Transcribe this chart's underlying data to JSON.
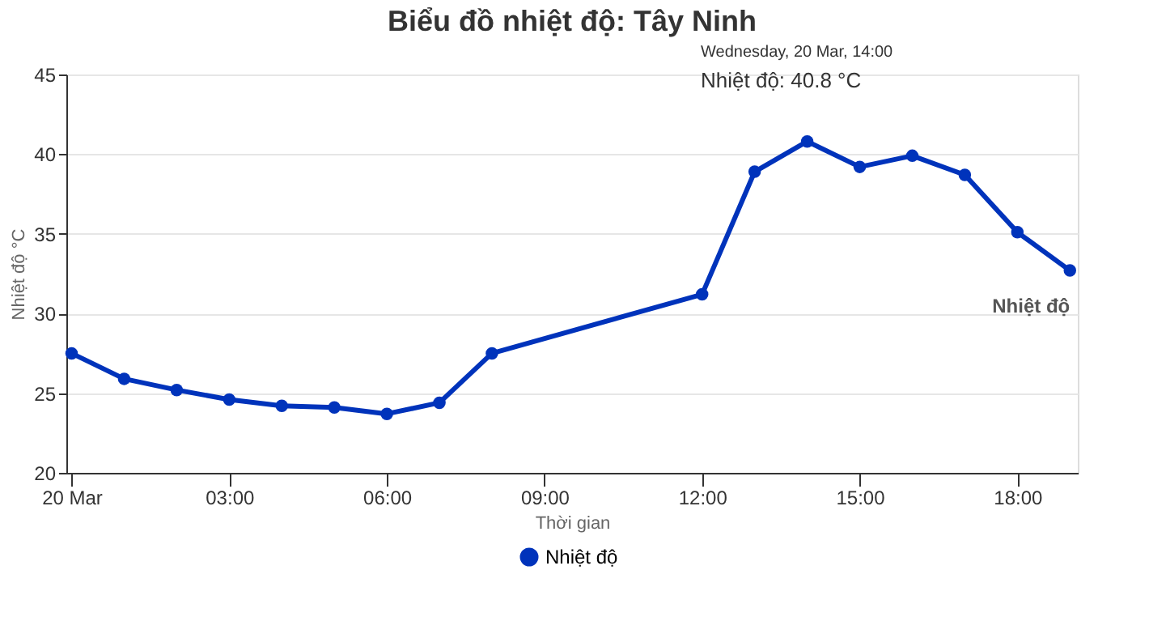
{
  "chart_data": {
    "type": "line",
    "title": "Biểu đồ nhiệt độ: Tây Ninh",
    "xlabel": "Thời gian",
    "ylabel": "Nhiệt độ °C",
    "x": [
      0,
      1,
      2,
      3,
      4,
      5,
      6,
      7,
      8,
      12,
      13,
      14,
      15,
      16,
      17,
      18,
      19
    ],
    "series": [
      {
        "name": "Nhiệt độ",
        "color": "#0033bb",
        "values": [
          27.5,
          25.9,
          25.2,
          24.6,
          24.2,
          24.1,
          23.7,
          24.4,
          27.5,
          31.2,
          38.9,
          40.8,
          39.2,
          39.9,
          38.7,
          35.1,
          32.7
        ]
      }
    ],
    "xlim": [
      -0.1,
      19.15
    ],
    "xticks": [
      {
        "value": 0,
        "label": "20 Mar"
      },
      {
        "value": 3,
        "label": "03:00"
      },
      {
        "value": 6,
        "label": "06:00"
      },
      {
        "value": 9,
        "label": "09:00"
      },
      {
        "value": 12,
        "label": "12:00"
      },
      {
        "value": 15,
        "label": "15:00"
      },
      {
        "value": 18,
        "label": "18:00"
      }
    ],
    "ylim": [
      20,
      45
    ],
    "yticks": [
      20,
      25,
      30,
      35,
      40,
      45
    ],
    "annotations": [
      "Wednesday, 20 Mar, 14:00",
      "Nhiệt độ: 40.8 °C"
    ],
    "grid": "y",
    "legend": "bottom",
    "marker": "circle",
    "line_style": "solid"
  }
}
